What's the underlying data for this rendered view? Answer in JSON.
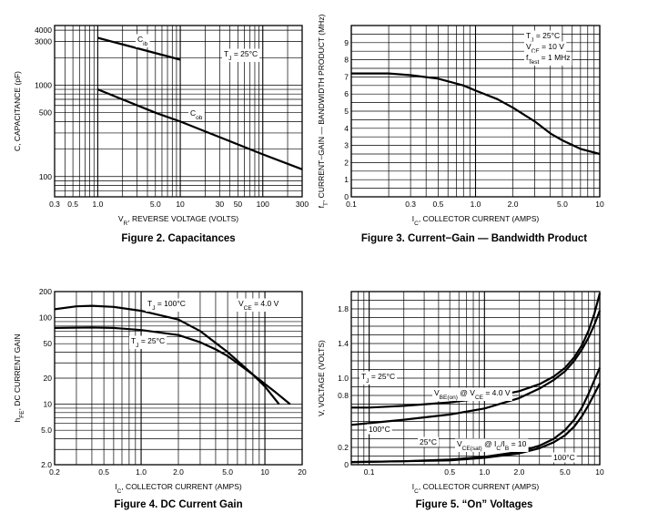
{
  "chart_data": [
    {
      "id": "fig2",
      "type": "line",
      "title": "Figure 2. Capacitances",
      "xlabel": "V",
      "xlabel_sub": "R",
      "xlabel_rest": ", REVERSE VOLTAGE (VOLTS)",
      "ylabel": "C, CAPACITANCE (pF)",
      "xscale": "log",
      "yscale": "log",
      "xlim": [
        0.3,
        300
      ],
      "ylim": [
        60,
        4500
      ],
      "xticks": [
        0.3,
        0.5,
        1.0,
        5.0,
        10,
        30,
        50,
        100,
        300
      ],
      "xtick_labels": [
        "0.3",
        "0.5",
        "1.0",
        "5.0",
        "10",
        "30",
        "50",
        "100",
        "300"
      ],
      "yticks": [
        100,
        500,
        1000,
        3000,
        4000
      ],
      "ytick_labels": [
        "100",
        "500",
        "1000",
        "3000",
        "4000"
      ],
      "annotations": [
        {
          "id": "cib",
          "text": "C",
          "sub": "ib"
        },
        {
          "id": "cob",
          "text": "C",
          "sub": "ob"
        },
        {
          "id": "tj",
          "text": "T",
          "sub": "J",
          "rest": " = 25°C"
        }
      ],
      "series": [
        {
          "name": "Cib",
          "x": [
            1.0,
            10
          ],
          "y": [
            3300,
            1900
          ]
        },
        {
          "name": "Cob",
          "x": [
            1.0,
            5.0,
            10,
            30,
            100,
            300
          ],
          "y": [
            900,
            500,
            400,
            270,
            175,
            120
          ]
        }
      ]
    },
    {
      "id": "fig3",
      "type": "line",
      "title": "Figure 3. Current−Gain — Bandwidth Product",
      "xlabel": "I",
      "xlabel_sub": "C",
      "xlabel_rest": ", COLLECTOR CURRENT (AMPS)",
      "ylabel": "f",
      "ylabel_sub": "T",
      "ylabel_rest": ", CURRENT−GAIN — BANDWIDTH PRODUCT (MHz)",
      "xscale": "log",
      "yscale": "linear",
      "xlim": [
        0.1,
        10
      ],
      "ylim": [
        0,
        10
      ],
      "xticks": [
        0.1,
        0.3,
        0.5,
        1.0,
        2.0,
        5.0,
        10
      ],
      "xtick_labels": [
        "0.1",
        "0.3",
        "0.5",
        "1.0",
        "2.0",
        "5.0",
        "10"
      ],
      "yticks": [
        0,
        1,
        2,
        3,
        4,
        5,
        6,
        7,
        8,
        9
      ],
      "ytick_labels": [
        "0",
        "1",
        "2",
        "3",
        "4",
        "5",
        "6",
        "7",
        "8",
        "9"
      ],
      "annotations": [
        {
          "id": "tj",
          "text": "T",
          "sub": "J",
          "rest": " = 25°C"
        },
        {
          "id": "vce",
          "text": "V",
          "sub": "CE",
          "rest": " = 10 V"
        },
        {
          "id": "ftest",
          "text": "f",
          "sub": "Test",
          "rest": " = 1 MHz"
        }
      ],
      "series": [
        {
          "name": "fT",
          "x": [
            0.1,
            0.2,
            0.3,
            0.5,
            0.8,
            1.0,
            1.5,
            2.0,
            3.0,
            4.0,
            5.0,
            7.0,
            10
          ],
          "y": [
            7.2,
            7.2,
            7.1,
            6.9,
            6.5,
            6.2,
            5.7,
            5.2,
            4.4,
            3.7,
            3.3,
            2.8,
            2.5
          ]
        }
      ]
    },
    {
      "id": "fig4",
      "type": "line",
      "title": "Figure 4. DC Current Gain",
      "xlabel": "I",
      "xlabel_sub": "C",
      "xlabel_rest": ", COLLECTOR CURRENT (AMPS)",
      "ylabel": "h",
      "ylabel_sub": "FE",
      "ylabel_rest": ", DC CURRENT GAIN",
      "xscale": "log",
      "yscale": "log",
      "xlim": [
        0.2,
        20
      ],
      "ylim": [
        2.0,
        200
      ],
      "xticks": [
        0.2,
        0.5,
        1.0,
        2.0,
        5.0,
        10,
        20
      ],
      "xtick_labels": [
        "0.2",
        "0.5",
        "1.0",
        "2.0",
        "5.0",
        "10",
        "20"
      ],
      "yticks": [
        2.0,
        5.0,
        10,
        20,
        50,
        100,
        200
      ],
      "ytick_labels": [
        "2.0",
        "5.0",
        "10",
        "20",
        "50",
        "100",
        "200"
      ],
      "annotations": [
        {
          "id": "t100",
          "text": "T",
          "sub": "J",
          "rest": " = 100°C"
        },
        {
          "id": "t25",
          "text": "T",
          "sub": "J",
          "rest": " = 25°C"
        },
        {
          "id": "vce",
          "text": "V",
          "sub": "CE",
          "rest": " = 4.0 V"
        }
      ],
      "series": [
        {
          "name": "TJ = 100°C",
          "x": [
            0.2,
            0.3,
            0.4,
            0.6,
            1.0,
            2.0,
            3.0,
            5.0,
            8.0,
            12,
            16
          ],
          "y": [
            125,
            135,
            137,
            133,
            120,
            95,
            70,
            40,
            22,
            14,
            10
          ]
        },
        {
          "name": "TJ = 25°C",
          "x": [
            0.2,
            0.4,
            0.6,
            1.0,
            2.0,
            3.0,
            4.0,
            5.0,
            8.0,
            10,
            13
          ],
          "y": [
            76,
            77,
            76,
            72,
            63,
            52,
            43,
            36,
            22,
            16,
            10
          ]
        }
      ]
    },
    {
      "id": "fig5",
      "type": "line",
      "title": "Figure 5. “On” Voltages",
      "xlabel": "I",
      "xlabel_sub": "C",
      "xlabel_rest": ", COLLECTOR CURRENT (AMPS)",
      "ylabel": "V, VOLTAGE (VOLTS)",
      "xscale": "log",
      "yscale": "linear",
      "xlim": [
        0.07,
        10
      ],
      "ylim": [
        0,
        2.0
      ],
      "xticks": [
        0.1,
        0.5,
        1.0,
        2.0,
        5.0,
        10
      ],
      "xtick_labels": [
        "0.1",
        "0.5",
        "1.0",
        "2.0",
        "5.0",
        "10"
      ],
      "yticks": [
        0,
        0.2,
        0.8,
        1.0,
        1.4,
        1.8
      ],
      "ytick_labels": [
        "0",
        "0.2",
        "0.8",
        "1.0",
        "1.4",
        "1.8"
      ],
      "annotations": [
        {
          "id": "tj",
          "text": "T",
          "sub": "J",
          "rest": " = 25°C"
        },
        {
          "id": "vbe",
          "text": "V",
          "sub": "BE(on)",
          "rest": " @ V",
          "sub2": "CE",
          "rest2": " = 4.0 V"
        },
        {
          "id": "t100",
          "text": "100°C"
        },
        {
          "id": "t25",
          "text": "25°C"
        },
        {
          "id": "vcesat",
          "text": "V",
          "sub": "CE(sat)",
          "rest": " @ I",
          "sub2": "C",
          "rest2": "/I",
          "sub3": "B",
          "rest3": " = 10"
        },
        {
          "id": "t100b",
          "text": "100°C"
        }
      ],
      "series": [
        {
          "name": "VBE 25°C",
          "x": [
            0.07,
            0.1,
            0.2,
            0.5,
            1.0,
            2.0,
            3.0,
            4.0,
            5.0,
            6.0,
            7.0,
            8.0,
            9.0,
            10
          ],
          "y": [
            0.66,
            0.66,
            0.68,
            0.72,
            0.77,
            0.85,
            0.93,
            1.02,
            1.12,
            1.24,
            1.38,
            1.55,
            1.75,
            1.98
          ]
        },
        {
          "name": "VBE 100°C",
          "x": [
            0.07,
            0.1,
            0.2,
            0.5,
            1.0,
            2.0,
            3.0,
            4.0,
            5.0,
            6.0,
            7.0,
            8.0,
            9.0,
            10
          ],
          "y": [
            0.46,
            0.48,
            0.52,
            0.58,
            0.65,
            0.77,
            0.88,
            0.98,
            1.08,
            1.2,
            1.33,
            1.47,
            1.62,
            1.78
          ]
        },
        {
          "name": "VCE(sat) 25°C",
          "x": [
            0.07,
            0.2,
            0.5,
            1.0,
            2.0,
            3.0,
            4.0,
            5.0,
            6.0,
            7.0,
            8.0,
            9.0,
            10
          ],
          "y": [
            0.03,
            0.04,
            0.06,
            0.09,
            0.15,
            0.22,
            0.3,
            0.4,
            0.52,
            0.66,
            0.82,
            0.98,
            1.12
          ]
        },
        {
          "name": "VCE(sat) 100°C",
          "x": [
            0.07,
            0.2,
            0.5,
            1.0,
            2.0,
            3.0,
            4.0,
            5.0,
            6.0,
            7.0,
            8.0,
            9.0,
            10
          ],
          "y": [
            0.03,
            0.04,
            0.05,
            0.08,
            0.13,
            0.19,
            0.26,
            0.34,
            0.44,
            0.56,
            0.69,
            0.82,
            0.94
          ]
        }
      ]
    }
  ]
}
